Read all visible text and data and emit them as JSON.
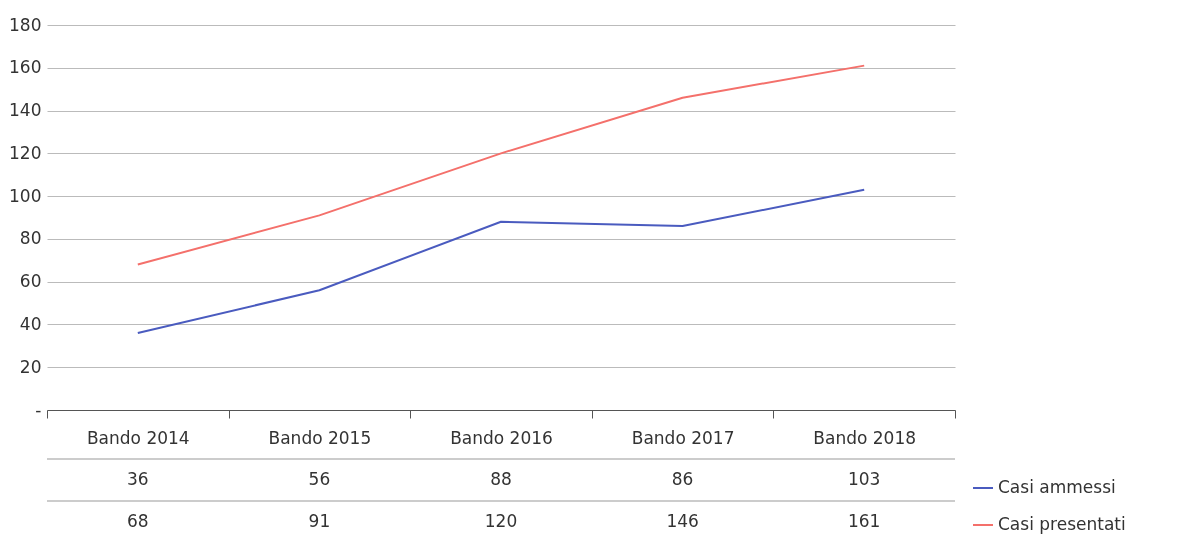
{
  "chart_data": {
    "type": "line",
    "categories": [
      "Bando 2014",
      "Bando 2015",
      "Bando 2016",
      "Bando 2017",
      "Bando 2018"
    ],
    "series": [
      {
        "name": "Casi ammessi",
        "color": "#4a5bbf",
        "values": [
          36,
          56,
          88,
          86,
          103
        ]
      },
      {
        "name": "Casi presentati",
        "color": "#f4706b",
        "values": [
          68,
          91,
          120,
          146,
          161
        ]
      }
    ],
    "ylim": [
      0,
      180
    ],
    "yticks": [
      {
        "value": 0,
        "label": "-"
      },
      20,
      40,
      60,
      80,
      100,
      120,
      140,
      160,
      180
    ],
    "grid": "y",
    "legend": "bottom right",
    "data_labels": true,
    "marker": "none",
    "line_style": "solid"
  }
}
